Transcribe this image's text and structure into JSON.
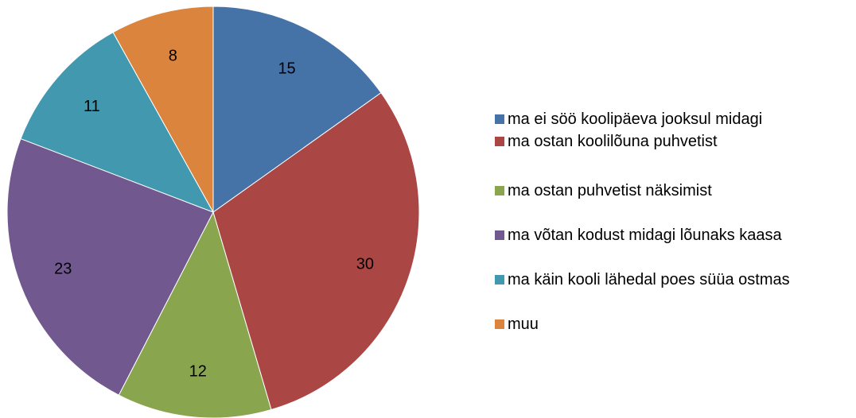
{
  "chart_data": {
    "type": "pie",
    "categories": [
      "ma ei söö koolipäeva jooksul midagi",
      "ma ostan koolilõuna puhvetist",
      "ma ostan puhvetist näksimist",
      "ma võtan kodust midagi lõunaks kaasa",
      "ma käin kooli lähedal poes süüa ostmas",
      "muu"
    ],
    "values": [
      15,
      30,
      12,
      23,
      11,
      8
    ],
    "colors": [
      "#4572a7",
      "#aa4643",
      "#89a54e",
      "#71588f",
      "#4198af",
      "#db843d"
    ],
    "legend": "right"
  }
}
